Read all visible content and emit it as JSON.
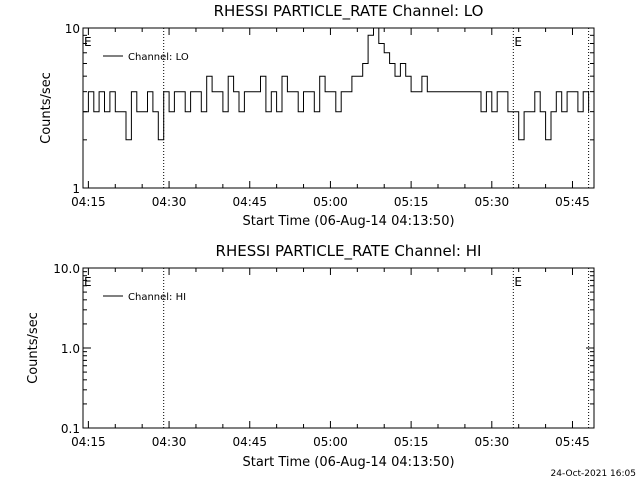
{
  "footer": {
    "timestamp": "24-Oct-2021 16:05"
  },
  "chart_data": [
    {
      "type": "line",
      "title": "RHESSI PARTICLE_RATE Channel: LO",
      "xlabel": "Start Time (06-Aug-14 04:13:50)",
      "ylabel": "Counts/sec",
      "y_scale": "log",
      "ylim": [
        1,
        10
      ],
      "y_ticks": [
        "1",
        "10"
      ],
      "x_ticks": [
        "04:15",
        "04:30",
        "04:45",
        "05:00",
        "05:15",
        "05:30",
        "05:45"
      ],
      "x_range": [
        "04:14",
        "05:49"
      ],
      "marker_times": [
        "04:29",
        "05:34",
        "05:48"
      ],
      "marker_labels": [
        {
          "time": "04:14",
          "text": "E"
        },
        {
          "time": "05:34",
          "text": "E"
        }
      ],
      "legend_position": "top-left",
      "series": [
        {
          "name": "Channel: LO",
          "color": "#000000",
          "x": [
            "04:14",
            "04:15",
            "04:16",
            "04:17",
            "04:18",
            "04:19",
            "04:20",
            "04:21",
            "04:22",
            "04:23",
            "04:24",
            "04:25",
            "04:26",
            "04:27",
            "04:28",
            "04:29",
            "04:30",
            "04:31",
            "04:32",
            "04:33",
            "04:34",
            "04:35",
            "04:36",
            "04:37",
            "04:38",
            "04:39",
            "04:40",
            "04:41",
            "04:42",
            "04:43",
            "04:44",
            "04:45",
            "04:46",
            "04:47",
            "04:48",
            "04:49",
            "04:50",
            "04:51",
            "04:52",
            "04:53",
            "04:54",
            "04:55",
            "04:56",
            "04:57",
            "04:58",
            "04:59",
            "05:00",
            "05:01",
            "05:02",
            "05:03",
            "05:04",
            "05:05",
            "05:06",
            "05:07",
            "05:08",
            "05:09",
            "05:10",
            "05:11",
            "05:12",
            "05:13",
            "05:14",
            "05:15",
            "05:16",
            "05:17",
            "05:18",
            "05:19",
            "05:20",
            "05:21",
            "05:22",
            "05:23",
            "05:24",
            "05:25",
            "05:26",
            "05:27",
            "05:28",
            "05:29",
            "05:30",
            "05:31",
            "05:32",
            "05:33",
            "05:34",
            "05:35",
            "05:36",
            "05:37",
            "05:38",
            "05:39",
            "05:40",
            "05:41",
            "05:42",
            "05:43",
            "05:44",
            "05:45",
            "05:46",
            "05:47",
            "05:48"
          ],
          "y": [
            3,
            4,
            3,
            4,
            3,
            4,
            3,
            3,
            2,
            4,
            3,
            3,
            4,
            3,
            2,
            4,
            3,
            4,
            4,
            3,
            4,
            4,
            3,
            5,
            4,
            4,
            3,
            5,
            4,
            3,
            4,
            4,
            4,
            5,
            3,
            4,
            3,
            5,
            4,
            4,
            3,
            4,
            4,
            3,
            5,
            4,
            4,
            3,
            4,
            4,
            5,
            5,
            6,
            9,
            10,
            8,
            7,
            6,
            5,
            6,
            5,
            4,
            4,
            5,
            4,
            4,
            4,
            4,
            4,
            4,
            4,
            4,
            4,
            4,
            3,
            4,
            3,
            4,
            4,
            3,
            3,
            2,
            3,
            3,
            4,
            3,
            2,
            3,
            4,
            3,
            4,
            4,
            3,
            4,
            3
          ]
        }
      ]
    },
    {
      "type": "line",
      "title": "RHESSI PARTICLE_RATE Channel: HI",
      "xlabel": "Start Time (06-Aug-14 04:13:50)",
      "ylabel": "Counts/sec",
      "y_scale": "log",
      "ylim": [
        0.1,
        10
      ],
      "y_ticks": [
        "0.1",
        "1.0",
        "10.0"
      ],
      "x_ticks": [
        "04:15",
        "04:30",
        "04:45",
        "05:00",
        "05:15",
        "05:30",
        "05:45"
      ],
      "x_range": [
        "04:14",
        "05:49"
      ],
      "marker_times": [
        "04:29",
        "05:34",
        "05:48"
      ],
      "marker_labels": [
        {
          "time": "04:14",
          "text": "E"
        },
        {
          "time": "05:34",
          "text": "E"
        }
      ],
      "legend_position": "top-left",
      "series": [
        {
          "name": "Channel: HI",
          "color": "#000000",
          "x": [],
          "y": []
        }
      ]
    }
  ]
}
